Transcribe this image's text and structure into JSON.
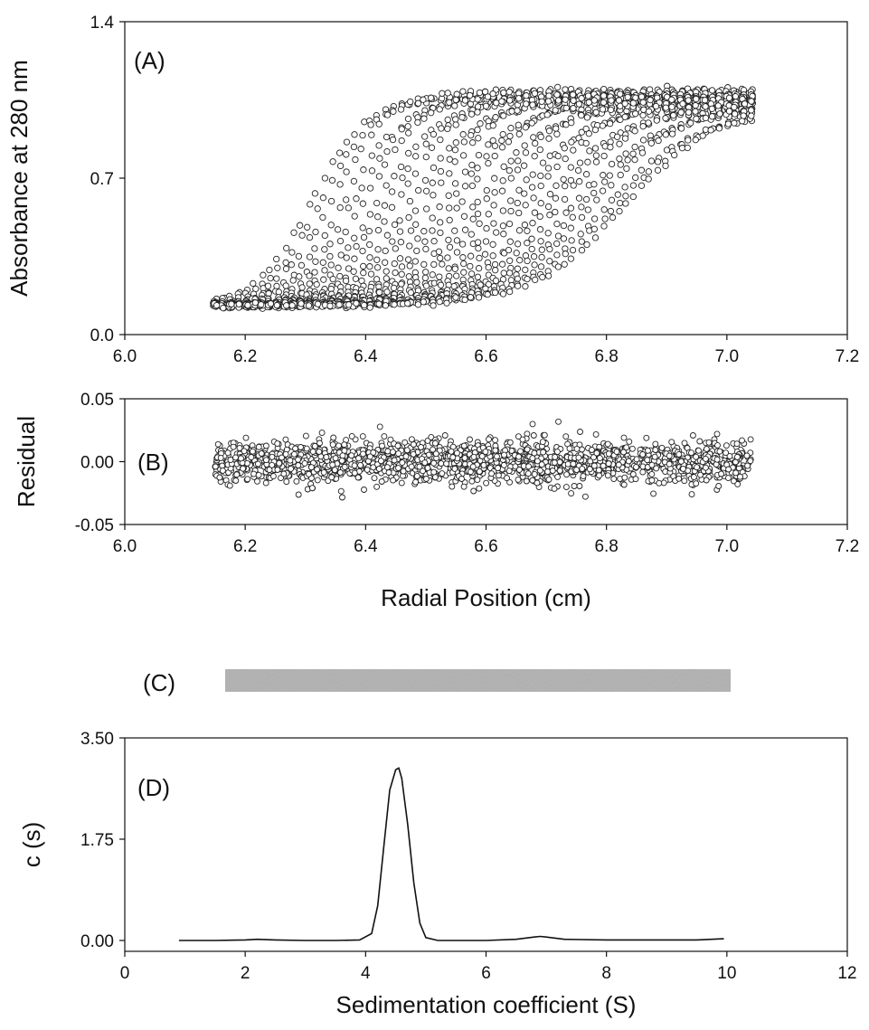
{
  "chart_data": [
    {
      "id": "A",
      "type": "scatter",
      "panel_label": "(A)",
      "ylabel": "Absorbance at 280 nm",
      "xlabel": "",
      "xlim": [
        6.0,
        7.2
      ],
      "ylim": [
        0.0,
        1.4
      ],
      "xticks": [
        "6.0",
        "6.2",
        "6.4",
        "6.6",
        "6.8",
        "7.0",
        "7.2"
      ],
      "yticks": [
        "0.0",
        "0.7",
        "1.4"
      ],
      "x_range_of_data": [
        6.15,
        7.04
      ],
      "scan_count": 30,
      "baseline": 0.13,
      "plateau": [
        1.08,
        1.0
      ],
      "boundary_midpoints": [
        6.31,
        6.83
      ],
      "grid": false
    },
    {
      "id": "B",
      "type": "scatter",
      "panel_label": "(B)",
      "ylabel": "Residual",
      "xlabel": "Radial Position (cm)",
      "xlim": [
        6.0,
        7.2
      ],
      "ylim": [
        -0.05,
        0.05
      ],
      "xticks": [
        "6.0",
        "6.2",
        "6.4",
        "6.6",
        "6.8",
        "7.0",
        "7.2"
      ],
      "yticks": [
        "0.05",
        "0.00",
        "-0.05"
      ],
      "x_range_of_data": [
        6.15,
        7.04
      ],
      "residual_spread": 0.02,
      "grid": false
    },
    {
      "id": "C",
      "type": "heatmap",
      "panel_label": "(C)",
      "description_visible": "residual bitmap",
      "grid": false
    },
    {
      "id": "D",
      "type": "line",
      "panel_label": "(D)",
      "ylabel": "c (s)",
      "xlabel": "Sedimentation coefficient (S)",
      "xlim": [
        0,
        12
      ],
      "ylim": [
        0.0,
        3.5
      ],
      "xticks": [
        "0",
        "2",
        "4",
        "6",
        "8",
        "10",
        "12"
      ],
      "yticks": [
        "0.00",
        "1.75",
        "3.50"
      ],
      "x": [
        0.9,
        1.5,
        2.0,
        2.2,
        2.5,
        3.0,
        3.5,
        3.9,
        4.1,
        4.2,
        4.3,
        4.4,
        4.5,
        4.55,
        4.6,
        4.7,
        4.8,
        4.9,
        5.0,
        5.2,
        5.5,
        6.0,
        6.5,
        6.8,
        6.9,
        7.0,
        7.3,
        8.0,
        9.0,
        9.5,
        9.95
      ],
      "y": [
        0.0,
        0.0,
        0.01,
        0.02,
        0.01,
        0.0,
        0.0,
        0.01,
        0.12,
        0.6,
        1.6,
        2.6,
        2.95,
        2.98,
        2.8,
        2.0,
        1.0,
        0.3,
        0.05,
        0.0,
        0.0,
        0.0,
        0.02,
        0.06,
        0.07,
        0.06,
        0.02,
        0.01,
        0.01,
        0.01,
        0.03
      ],
      "grid": false
    }
  ]
}
